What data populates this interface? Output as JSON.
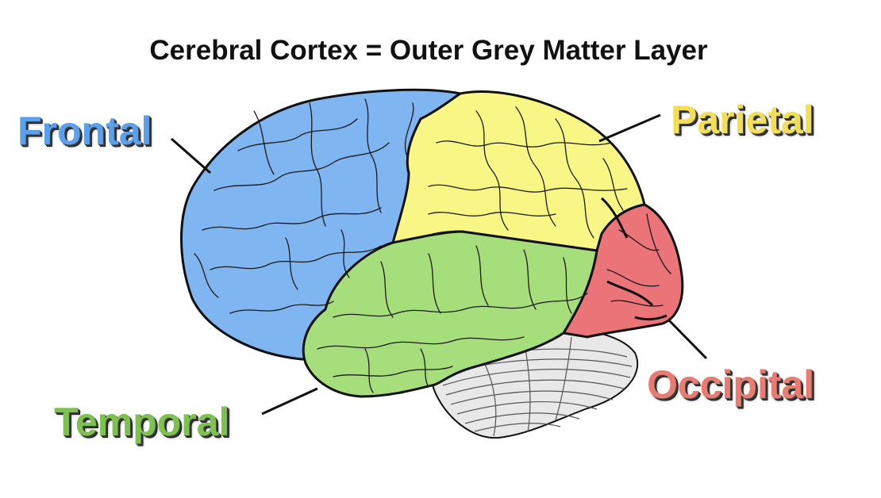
{
  "title": "Cerebral Cortex = Outer Grey Matter Layer",
  "lobes": [
    {
      "key": "frontal",
      "label": "Frontal",
      "color": "#7fb5f0",
      "text_color": "#5aa0ec"
    },
    {
      "key": "parietal",
      "label": "Parietal",
      "color": "#f8f684",
      "text_color": "#f3df55"
    },
    {
      "key": "occipital",
      "label": "Occipital",
      "color": "#ea7478",
      "text_color": "#e87c70"
    },
    {
      "key": "temporal",
      "label": "Temporal",
      "color": "#a6de7c",
      "text_color": "#7dc251"
    }
  ],
  "cerebellum_color": "#e8e8e8",
  "outline_color": "#111111"
}
